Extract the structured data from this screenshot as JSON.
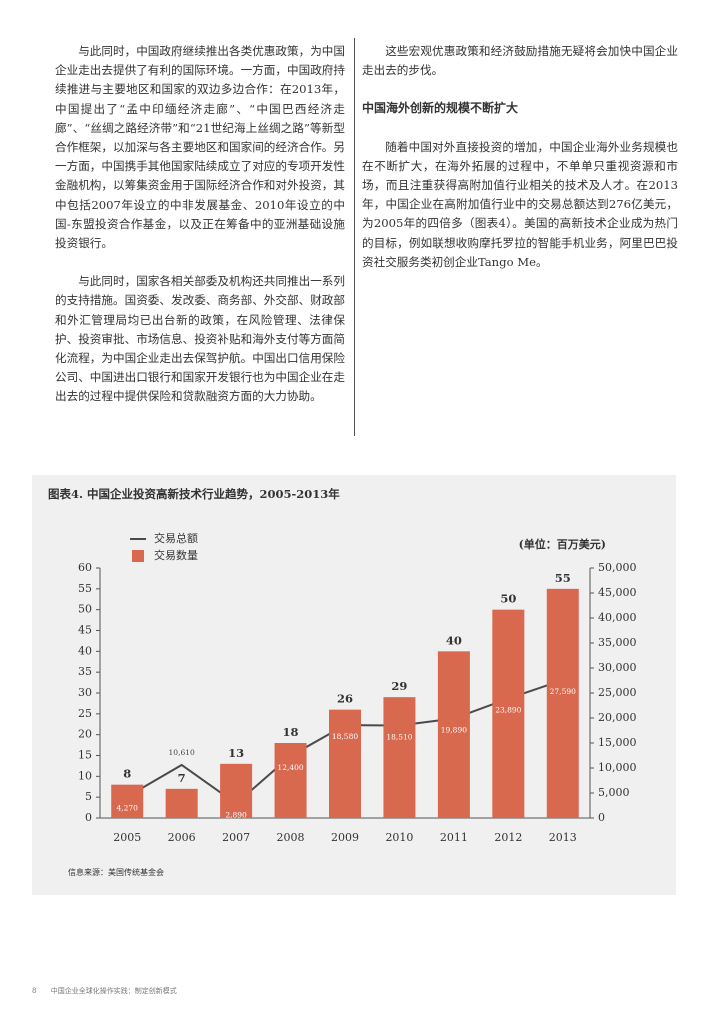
{
  "left_column": {
    "paragraphs": [
      "与此同时，中国政府继续推出各类优惠政策，为中国企业走出去提供了有利的国际环境。一方面，中国政府持续推进与主要地区和国家的双边多边合作：在2013年，中国提出了“孟中印缅经济走廊”、“中国巴西经济走廊”、“丝绸之路经济带”和“21世纪海上丝绸之路”等新型合作框架，以加深与各主要地区和国家间的经济合作。另一方面，中国携手其他国家陆续成立了对应的专项开发性金融机构，以筹集资金用于国际经济合作和对外投资，其中包括2007年设立的中非发展基金、2010年设立的中国-东盟投资合作基金，以及正在筹备中的亚洲基础设施投资银行。",
      "与此同时，国家各相关部委及机构还共同推出一系列的支持措施。国资委、发改委、商务部、外交部、财政部和外汇管理局均已出台新的政策，在风险管理、法律保护、投资审批、市场信息、投资补贴和海外支付等方面简化流程，为中国企业走出去保驾护航。中国出口信用保险公司、中国进出口银行和国家开发银行也为中国企业在走出去的过程中提供保险和贷款融资方面的大力协助。"
    ]
  },
  "right_column": {
    "paragraph_1": "这些宏观优惠政策和经济鼓励措施无疑将会加快中国企业走出去的步伐。",
    "heading": "中国海外创新的规模不断扩大",
    "paragraph_2": "随着中国对外直接投资的增加，中国企业海外业务规模也在不断扩大，在海外拓展的过程中，不单单只重视资源和市场，而且注重获得高附加值行业相关的技术及人才。在2013年，中国企业在高附加值行业中的交易总额达到276亿美元，为2005年的四倍多（图表4）。美国的高新技术企业成为热门的目标，例如联想收购摩托罗拉的智能手机业务，阿里巴巴投资社交服务类初创企业Tango Me。"
  },
  "chart_data": {
    "type": "combo",
    "title": "图表4. 中国企业投资高新技术行业趋势，2005-2013年",
    "unit_label": "(单位：百万美元)",
    "source": "信息来源：美国传统基金会",
    "categories": [
      "2005",
      "2006",
      "2007",
      "2008",
      "2009",
      "2010",
      "2011",
      "2012",
      "2013"
    ],
    "series": [
      {
        "name": "交易总额",
        "type": "line",
        "axis": "y2",
        "color": "#4a4a4a",
        "values": [
          4270,
          10610,
          2890,
          12400,
          18580,
          18510,
          19890,
          23890,
          27590
        ],
        "value_labels": [
          "4,270",
          "10,610",
          "2,890",
          "12,400",
          "18,580",
          "18,510",
          "19,890",
          "23,890",
          "27,590"
        ]
      },
      {
        "name": "交易数量",
        "type": "bar",
        "axis": "y",
        "color": "#d8684e",
        "values": [
          8,
          7,
          13,
          18,
          26,
          29,
          40,
          50,
          55
        ]
      }
    ],
    "ylim": [
      0,
      60
    ],
    "yticks": [
      0,
      5,
      10,
      15,
      20,
      25,
      30,
      35,
      40,
      45,
      50,
      55,
      60
    ],
    "y2lim": [
      0,
      50000
    ],
    "y2ticks": [
      0,
      {
        "value": 5000,
        "label": "5,000"
      },
      {
        "value": 10000,
        "label": "10,000"
      },
      {
        "value": 15000,
        "label": "15,000"
      },
      {
        "value": 20000,
        "label": "20,000"
      },
      {
        "value": 25000,
        "label": "25,000"
      },
      {
        "value": 30000,
        "label": "30,000"
      },
      {
        "value": 35000,
        "label": "35,000"
      },
      {
        "value": 40000,
        "label": "40,000"
      },
      {
        "value": 45000,
        "label": "45,000"
      },
      {
        "value": 50000,
        "label": "50,000"
      }
    ],
    "grid": false
  },
  "footer": {
    "page_number": "8",
    "text": "中国企业全球化操作实践：制定创新模式"
  }
}
